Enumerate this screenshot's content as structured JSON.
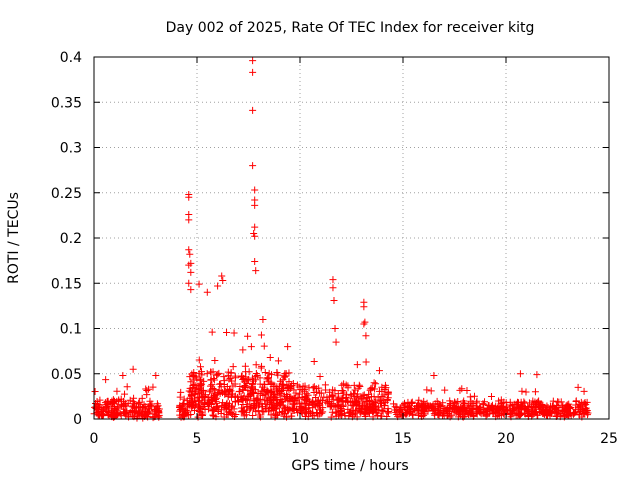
{
  "chart_data": {
    "type": "scatter",
    "title": "Day 002 of 2025, Rate Of TEC Index for receiver kitg",
    "xlabel": "GPS time / hours",
    "ylabel": "ROTI / TECUs",
    "xlim": [
      0,
      25
    ],
    "ylim": [
      0,
      0.4
    ],
    "xticks": [
      0,
      5,
      10,
      15,
      20,
      25
    ],
    "yticks": [
      0,
      0.05,
      0.1,
      0.15,
      0.2,
      0.25,
      0.3,
      0.35,
      0.4
    ],
    "xtick_labels": [
      "0",
      "5",
      "10",
      "15",
      "20",
      "25"
    ],
    "ytick_labels": [
      "0",
      "0.05",
      "0.1",
      "0.15",
      "0.2",
      "0.25",
      "0.3",
      "0.35",
      "0.4"
    ],
    "grid": true,
    "marker": "+",
    "color": "#ff0000",
    "peaks": [
      {
        "x": 7.7,
        "y": 0.396
      },
      {
        "x": 7.7,
        "y": 0.383
      },
      {
        "x": 7.7,
        "y": 0.341
      },
      {
        "x": 7.7,
        "y": 0.28
      },
      {
        "x": 7.8,
        "y": 0.253
      },
      {
        "x": 7.8,
        "y": 0.242
      },
      {
        "x": 7.8,
        "y": 0.236
      },
      {
        "x": 7.8,
        "y": 0.212
      },
      {
        "x": 7.75,
        "y": 0.205
      },
      {
        "x": 7.8,
        "y": 0.202
      },
      {
        "x": 7.8,
        "y": 0.174
      },
      {
        "x": 7.85,
        "y": 0.164
      },
      {
        "x": 4.6,
        "y": 0.248
      },
      {
        "x": 4.6,
        "y": 0.245
      },
      {
        "x": 4.6,
        "y": 0.226
      },
      {
        "x": 4.6,
        "y": 0.22
      },
      {
        "x": 4.6,
        "y": 0.187
      },
      {
        "x": 4.65,
        "y": 0.182
      },
      {
        "x": 4.7,
        "y": 0.172
      },
      {
        "x": 4.6,
        "y": 0.17
      },
      {
        "x": 4.7,
        "y": 0.162
      },
      {
        "x": 4.6,
        "y": 0.15
      },
      {
        "x": 4.7,
        "y": 0.143
      },
      {
        "x": 5.1,
        "y": 0.149
      },
      {
        "x": 5.5,
        "y": 0.14
      },
      {
        "x": 6.0,
        "y": 0.147
      },
      {
        "x": 6.2,
        "y": 0.158
      },
      {
        "x": 6.25,
        "y": 0.153
      },
      {
        "x": 11.6,
        "y": 0.154
      },
      {
        "x": 11.6,
        "y": 0.145
      },
      {
        "x": 11.65,
        "y": 0.131
      },
      {
        "x": 11.7,
        "y": 0.1
      },
      {
        "x": 11.75,
        "y": 0.085
      },
      {
        "x": 13.1,
        "y": 0.129
      },
      {
        "x": 13.1,
        "y": 0.124
      },
      {
        "x": 13.15,
        "y": 0.107
      },
      {
        "x": 13.1,
        "y": 0.105
      },
      {
        "x": 13.2,
        "y": 0.092
      },
      {
        "x": 8.2,
        "y": 0.11
      },
      {
        "x": 9.4,
        "y": 0.08
      },
      {
        "x": 6.8,
        "y": 0.095
      },
      {
        "x": 1.9,
        "y": 0.055
      },
      {
        "x": 1.4,
        "y": 0.048
      },
      {
        "x": 16.5,
        "y": 0.048
      },
      {
        "x": 20.7,
        "y": 0.05
      },
      {
        "x": 21.5,
        "y": 0.049
      },
      {
        "x": 23.5,
        "y": 0.035
      },
      {
        "x": 3.0,
        "y": 0.048
      }
    ],
    "bands": [
      {
        "x_start": 0.0,
        "x_end": 3.2,
        "y_base": 0.012,
        "y_spread": 0.014,
        "y_cap": 0.048,
        "density": 40
      },
      {
        "x_start": 4.1,
        "x_end": 4.6,
        "y_base": 0.015,
        "y_spread": 0.018,
        "y_cap": 0.06,
        "density": 40
      },
      {
        "x_start": 4.6,
        "x_end": 9.5,
        "y_base": 0.03,
        "y_spread": 0.028,
        "y_cap": 0.1,
        "density": 60
      },
      {
        "x_start": 9.5,
        "x_end": 14.3,
        "y_base": 0.022,
        "y_spread": 0.02,
        "y_cap": 0.07,
        "density": 45
      },
      {
        "x_start": 14.5,
        "x_end": 24.0,
        "y_base": 0.012,
        "y_spread": 0.01,
        "y_cap": 0.035,
        "density": 35
      }
    ]
  }
}
